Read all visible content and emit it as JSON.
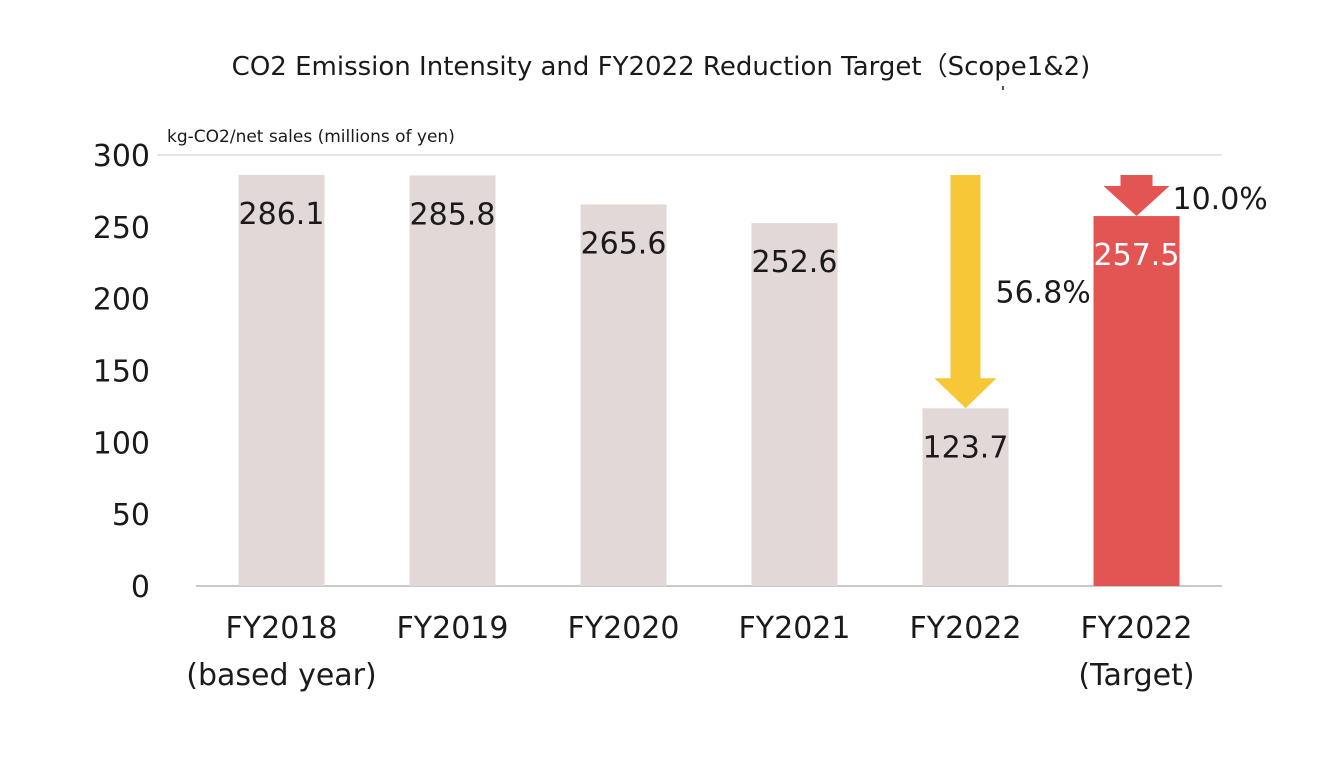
{
  "chart_data": {
    "type": "bar",
    "title": "CO2 Emission Intensity and FY2022 Reduction Target（Scope1&2)",
    "ylabel": "kg-CO2/net sales (millions of yen)",
    "xlabel": "",
    "ylim": [
      0,
      300
    ],
    "yticks": [
      0,
      50,
      100,
      150,
      200,
      250,
      300
    ],
    "grid": false,
    "categories": [
      [
        "FY2018",
        "(based year)"
      ],
      [
        "FY2019"
      ],
      [
        "FY2020"
      ],
      [
        "FY2021"
      ],
      [
        "FY2022"
      ],
      [
        "FY2022",
        "(Target)"
      ]
    ],
    "values": [
      286.1,
      285.8,
      265.6,
      252.6,
      123.7,
      257.5
    ],
    "value_labels": [
      "286.1",
      "285.8",
      "265.6",
      "252.6",
      "123.7",
      "257.5"
    ],
    "bar_colors": [
      "#e1d8d7",
      "#e1d8d7",
      "#e1d8d7",
      "#e1d8d7",
      "#e1d8d7",
      "#e35552"
    ],
    "label_colors": [
      "#1a1a1a",
      "#1a1a1a",
      "#1a1a1a",
      "#1a1a1a",
      "#1a1a1a",
      "#ffffff"
    ],
    "annotations": [
      {
        "text": "56.8%",
        "arrow_color": "#f7c737",
        "from_value": 286.1,
        "to_value": 123.7,
        "bar_index": 4
      },
      {
        "text": "10.0%",
        "arrow_color": "#e35552",
        "from_value": 286.1,
        "to_value": 257.5,
        "bar_index": 5
      }
    ]
  }
}
